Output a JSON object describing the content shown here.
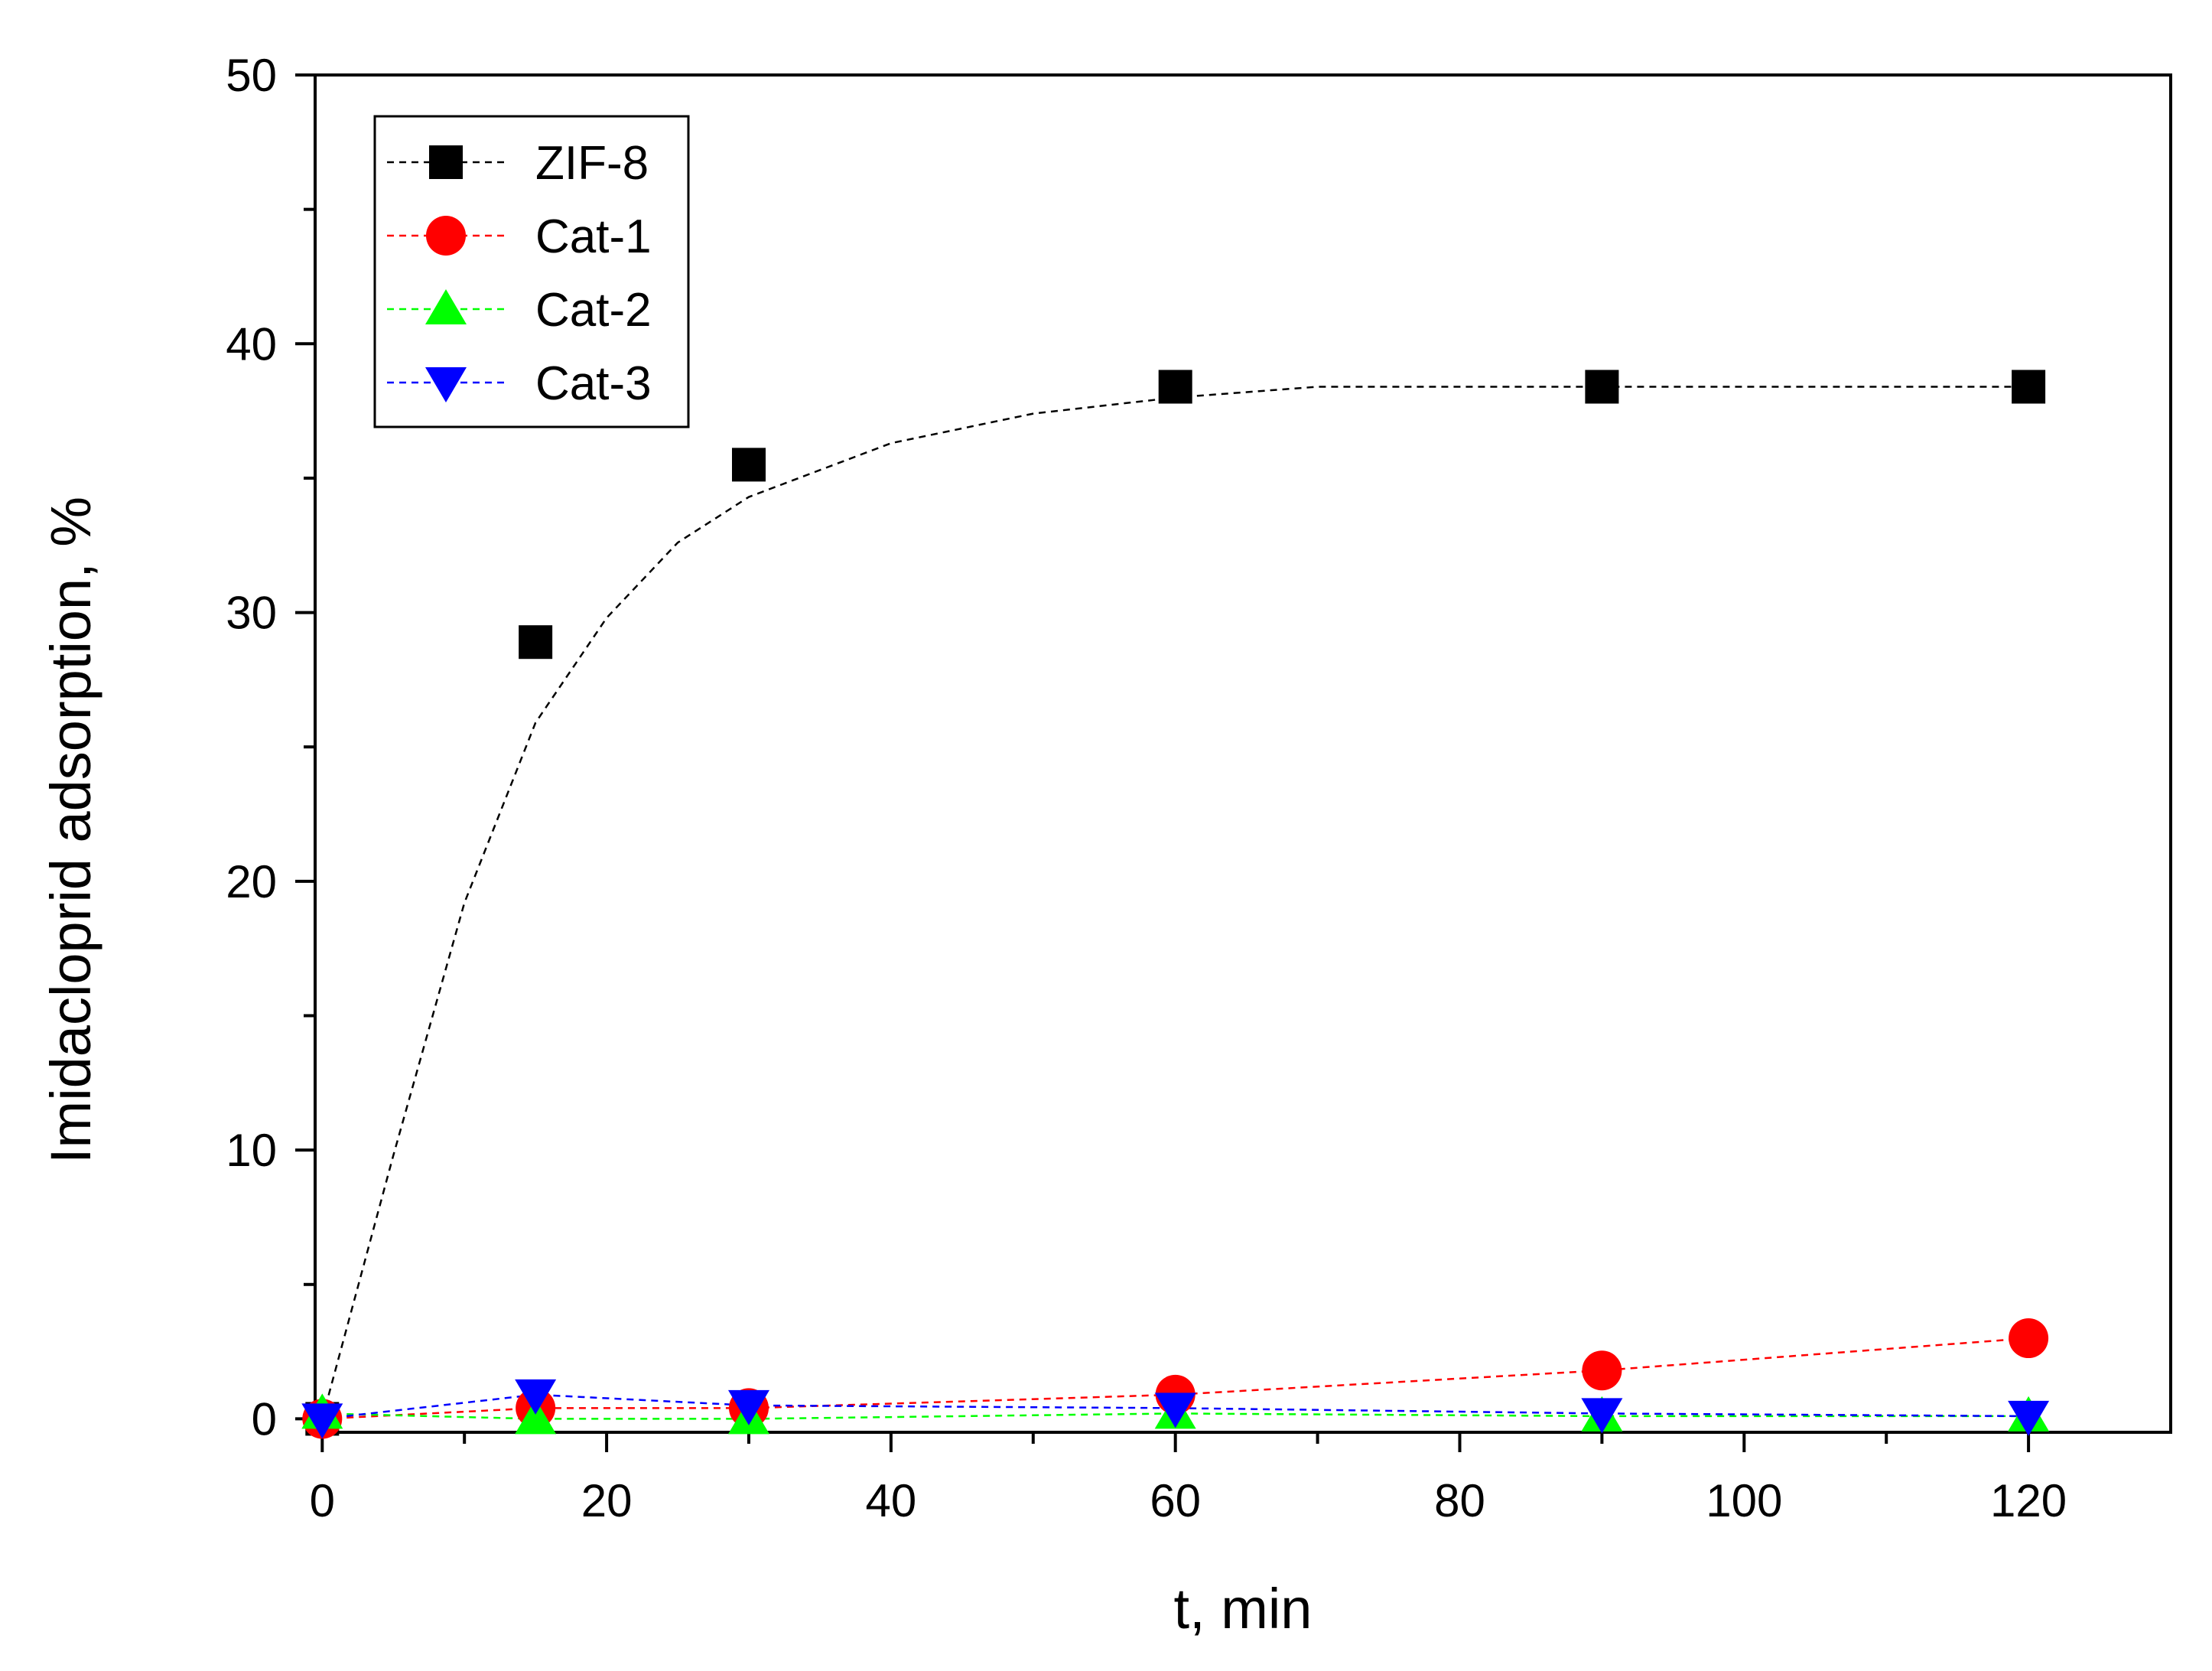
{
  "chart_data": {
    "type": "line",
    "xlabel": "t, min",
    "ylabel": "Imidacloprid adsorption, %",
    "xlim": [
      -0.5,
      130
    ],
    "ylim": [
      -0.5,
      50
    ],
    "x_ticks": [
      0,
      20,
      40,
      60,
      80,
      100,
      120
    ],
    "x_tick_labels": [
      "0",
      "20",
      "40",
      "60",
      "80",
      "100",
      "120"
    ],
    "y_ticks": [
      0,
      10,
      20,
      30,
      40,
      50
    ],
    "y_tick_labels": [
      "0",
      "10",
      "20",
      "30",
      "40",
      "50"
    ],
    "grid": false,
    "legend_position": "top-left",
    "series": [
      {
        "name": "ZIF-8",
        "color": "#000000",
        "marker": "square",
        "x": [
          0,
          15,
          30,
          60,
          90,
          120
        ],
        "y": [
          0,
          28.9,
          35.5,
          38.4,
          38.4,
          38.4
        ],
        "fit_line": {
          "x": [
            0,
            5,
            10,
            15,
            20,
            25,
            30,
            40,
            50,
            60,
            70,
            80,
            90,
            100,
            110,
            120
          ],
          "y": [
            0,
            9.8,
            19.2,
            25.9,
            29.8,
            32.6,
            34.3,
            36.3,
            37.4,
            38.0,
            38.4,
            38.4,
            38.4,
            38.4,
            38.4,
            38.4
          ]
        }
      },
      {
        "name": "Cat-1",
        "color": "#ff0000",
        "marker": "circle",
        "x": [
          0,
          15,
          30,
          60,
          90,
          120
        ],
        "y": [
          0,
          0.4,
          0.4,
          0.9,
          1.8,
          3.0
        ]
      },
      {
        "name": "Cat-2",
        "color": "#00ff00",
        "marker": "triangle-up",
        "x": [
          0,
          15,
          30,
          60,
          90,
          120
        ],
        "y": [
          0.2,
          0.0,
          0.0,
          0.2,
          0.1,
          0.1
        ]
      },
      {
        "name": "Cat-3",
        "color": "#0000ff",
        "marker": "triangle-down",
        "x": [
          0,
          15,
          30,
          60,
          90,
          120
        ],
        "y": [
          0,
          0.9,
          0.5,
          0.4,
          0.2,
          0.1
        ]
      }
    ]
  }
}
